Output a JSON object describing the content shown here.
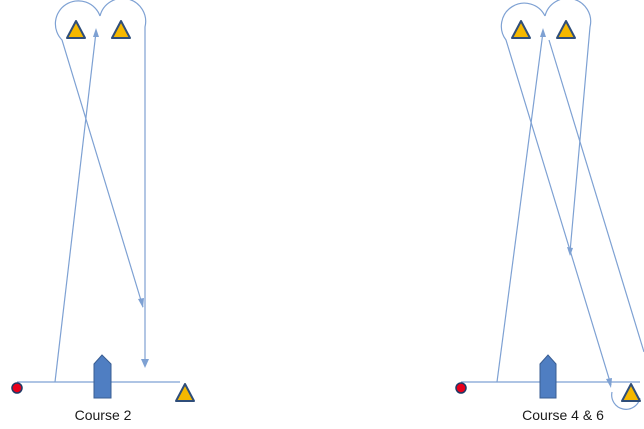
{
  "diagrams": [
    {
      "caption": "Course 2"
    },
    {
      "caption": "Course 4 & 6"
    }
  ],
  "colors": {
    "course_line": "#7ea1d3",
    "mark_fill": "#f5b800",
    "mark_stroke": "#2f4e7a",
    "pin_end": "#e8001c",
    "committee_boat": "#4f7ec2"
  }
}
